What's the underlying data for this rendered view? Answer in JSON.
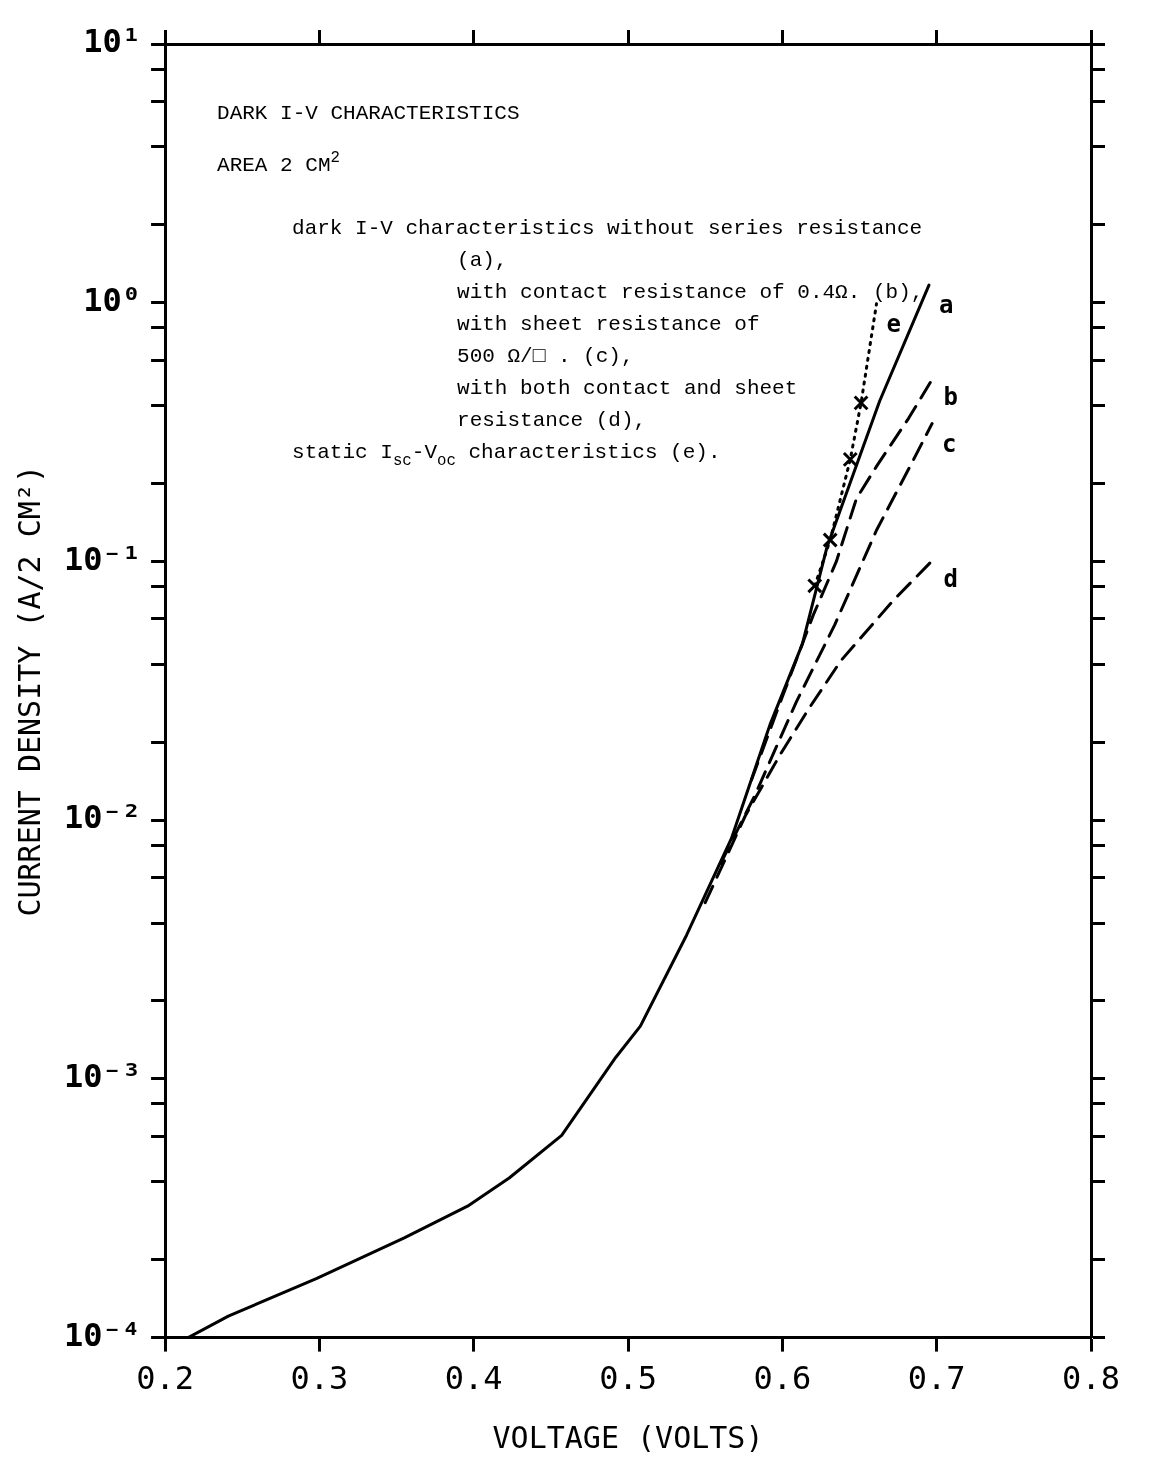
{
  "chart_data": {
    "type": "line",
    "title": "DARK I-V CHARACTERISTICS",
    "subtitle": "AREA 2 CM$^{2}$",
    "xlabel": "VOLTAGE (VOLTS)",
    "ylabel": "CURRENT DENSITY (A/2 CM²)",
    "annotations": [
      "dark I-V characteristics without series resistance",
      "(a),",
      "with contact resistance of 0.4Ω. (b),",
      "with sheet resistance of",
      "500 Ω/□ . (c),",
      "with both contact and sheet",
      "resistance (d),",
      "static I$_{sc}$-V$_{oc}$ characteristics (e)."
    ],
    "log": "y",
    "grid": false,
    "legend": false,
    "marker": "none",
    "xlim": [
      0.2,
      0.8
    ],
    "xticks": [
      0.2,
      0.3,
      0.4,
      0.5,
      0.6,
      0.7,
      0.8
    ],
    "ylim": [
      0.0001,
      10
    ],
    "yticks": [
      {
        "value": 0.0001,
        "label": "10⁻⁴"
      },
      {
        "value": 0.0002,
        "label": null
      },
      {
        "value": 0.0004,
        "label": null
      },
      {
        "value": 0.0006,
        "label": null
      },
      {
        "value": 0.0008,
        "label": null
      },
      {
        "value": 0.001,
        "label": "10⁻³"
      },
      {
        "value": 0.002,
        "label": null
      },
      {
        "value": 0.004,
        "label": null
      },
      {
        "value": 0.006,
        "label": null
      },
      {
        "value": 0.008,
        "label": null
      },
      {
        "value": 0.01,
        "label": "10⁻²"
      },
      {
        "value": 0.02,
        "label": null
      },
      {
        "value": 0.04,
        "label": null
      },
      {
        "value": 0.06,
        "label": null
      },
      {
        "value": 0.08,
        "label": null
      },
      {
        "value": 0.1,
        "label": "10⁻¹"
      },
      {
        "value": 0.2,
        "label": null
      },
      {
        "value": 0.4,
        "label": null
      },
      {
        "value": 0.6,
        "label": null
      },
      {
        "value": 0.8,
        "label": null
      },
      {
        "value": 1,
        "label": "10⁰"
      },
      {
        "value": 2,
        "label": null
      },
      {
        "value": 4,
        "label": null
      },
      {
        "value": 6,
        "label": null
      },
      {
        "value": 8,
        "label": null
      },
      {
        "value": 10,
        "label": "10¹"
      }
    ],
    "series": [
      {
        "name": "a",
        "color": "#000000",
        "line_style": "solid",
        "x": [
          0.215,
          0.241,
          0.298,
          0.355,
          0.396,
          0.423,
          0.457,
          0.492,
          0.508,
          0.538,
          0.567,
          0.592,
          0.613,
          0.629,
          0.663,
          0.695
        ],
        "values": [
          0.0001,
          0.000121,
          0.000169,
          0.000243,
          0.000322,
          0.000414,
          0.000605,
          0.00121,
          0.0016,
          0.0036,
          0.0085,
          0.0234,
          0.048,
          0.114,
          0.416,
          1.17
        ]
      },
      {
        "name": "b",
        "color": "#000000",
        "line_style": "dashed",
        "x": [
          0.58,
          0.6,
          0.62,
          0.635,
          0.648,
          0.661,
          0.682,
          0.698
        ],
        "values": [
          0.0143,
          0.03,
          0.062,
          0.1,
          0.175,
          0.233,
          0.359,
          0.516
        ]
      },
      {
        "name": "c",
        "color": "#000000",
        "line_style": "dashed",
        "x": [
          0.56,
          0.582,
          0.609,
          0.634,
          0.661,
          0.684,
          0.697
        ],
        "values": [
          0.0068,
          0.0124,
          0.0286,
          0.057,
          0.132,
          0.241,
          0.341
        ]
      },
      {
        "name": "d",
        "color": "#000000",
        "line_style": "dashed",
        "x": [
          0.55,
          0.576,
          0.599,
          0.617,
          0.638,
          0.672,
          0.698
        ],
        "values": [
          0.0048,
          0.0104,
          0.0181,
          0.0269,
          0.0414,
          0.0708,
          0.102
        ]
      },
      {
        "name": "e",
        "color": "#000000",
        "line_style": "dotted",
        "x": [
          0.621,
          0.631,
          0.644,
          0.651,
          0.661
        ],
        "values": [
          0.0805,
          0.121,
          0.248,
          0.41,
          0.99
        ]
      },
      {
        "type": "scatter",
        "marker": "cross",
        "color": "#000000",
        "x": [
          0.621,
          0.631,
          0.644,
          0.651
        ],
        "values": [
          0.0805,
          0.121,
          0.248,
          0.41
        ]
      }
    ]
  }
}
